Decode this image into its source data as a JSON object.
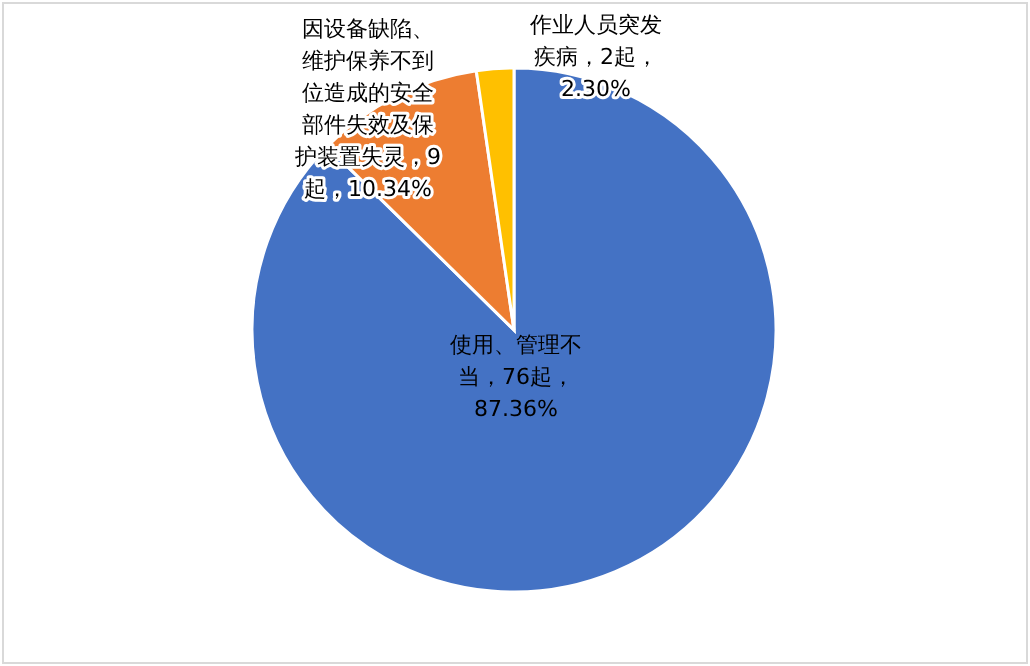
{
  "chart_data": {
    "type": "pie",
    "categories": [
      "使用、管理不当",
      "因设备缺陷、维护保养不到位造成的安全部件失效及保护装置失灵",
      "作业人员突发疾病"
    ],
    "values": [
      76,
      9,
      2
    ],
    "colors": [
      "#4472c4",
      "#ed7d31",
      "#ffc000"
    ],
    "value_labels": [
      "76起，87.36%",
      "9起，10.34%",
      "2起，2.30%"
    ],
    "legend": false
  }
}
